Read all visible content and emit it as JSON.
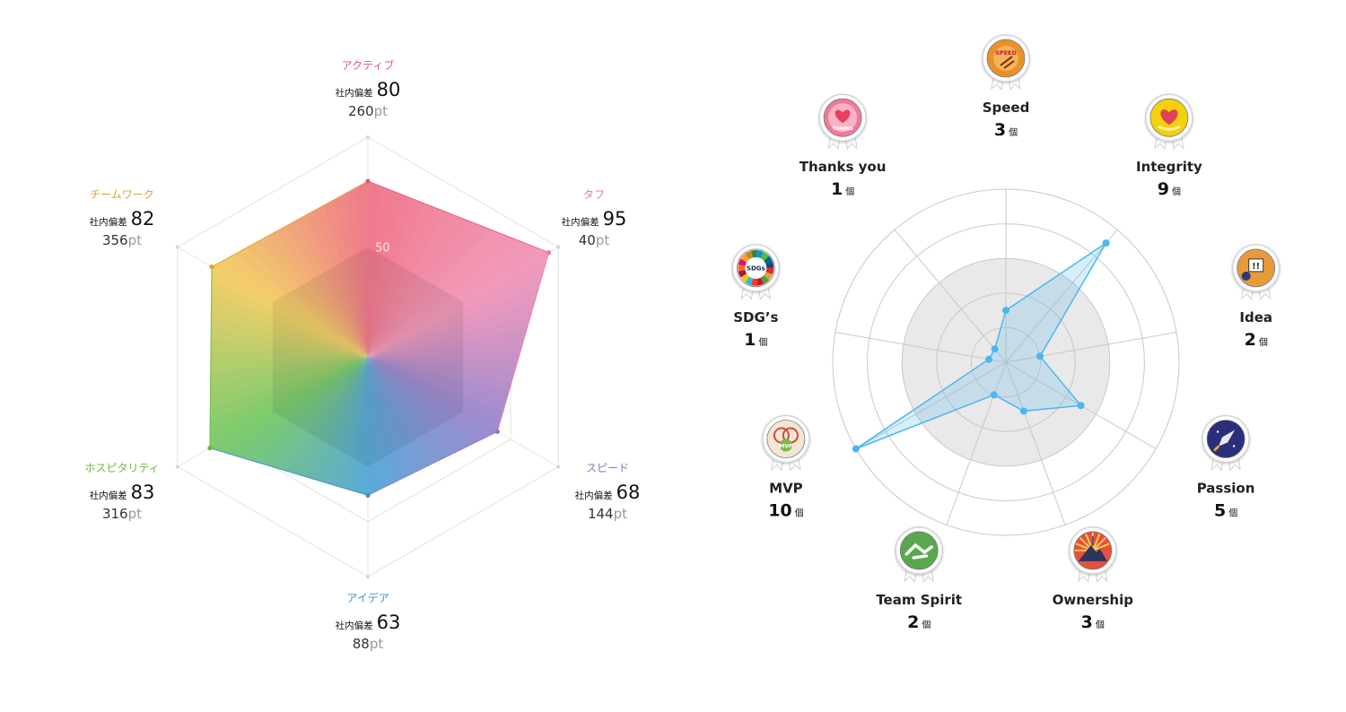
{
  "chart_data": [
    {
      "type": "radar",
      "title": "",
      "max": 100,
      "gridline_label": "50",
      "score_prefix": "社内偏差",
      "points_unit": "pt",
      "axes": [
        {
          "name": "アクティブ",
          "score": 80,
          "points": "260",
          "color": "#e05a7a"
        },
        {
          "name": "タフ",
          "score": 95,
          "points": "40",
          "color": "#e87aa0"
        },
        {
          "name": "スピード",
          "score": 68,
          "points": "144",
          "color": "#8878c0"
        },
        {
          "name": "アイデア",
          "score": 63,
          "points": "88",
          "color": "#3a8ed0"
        },
        {
          "name": "ホスピタリティ",
          "score": 83,
          "points": "316",
          "color": "#6cb83a"
        },
        {
          "name": "チームワーク",
          "score": 82,
          "points": "356",
          "color": "#e0a030"
        }
      ]
    },
    {
      "type": "radar",
      "title": "",
      "count_unit": "個",
      "max": 10,
      "series_color": "#4ab8ee",
      "axes": [
        {
          "name": "Speed",
          "count": 3,
          "badge": "SPEED",
          "badge_color": "#e8902a"
        },
        {
          "name": "Integrity",
          "count": 9,
          "badge": "SMILE",
          "badge_color": "#f2d20c"
        },
        {
          "name": "Idea",
          "count": 2,
          "badge": "!!",
          "badge_color": "#e89a3a"
        },
        {
          "name": "Passion",
          "count": 5,
          "badge": "rocket",
          "badge_color": "#2b2f7a"
        },
        {
          "name": "Ownership",
          "count": 3,
          "badge": "mountain",
          "badge_color": "#e8503a"
        },
        {
          "name": "Team Spirit",
          "count": 2,
          "badge": "handshake",
          "badge_color": "#5aa84e"
        },
        {
          "name": "MVP",
          "count": 10,
          "badge": "MVP",
          "badge_color": "#f4e6d4"
        },
        {
          "name": "SDG’s",
          "count": 1,
          "badge": "SDGs",
          "badge_color": "#ffffff"
        },
        {
          "name": "Thanks you",
          "count": 1,
          "badge": "THANKS",
          "badge_color": "#f07a9a"
        }
      ]
    }
  ]
}
